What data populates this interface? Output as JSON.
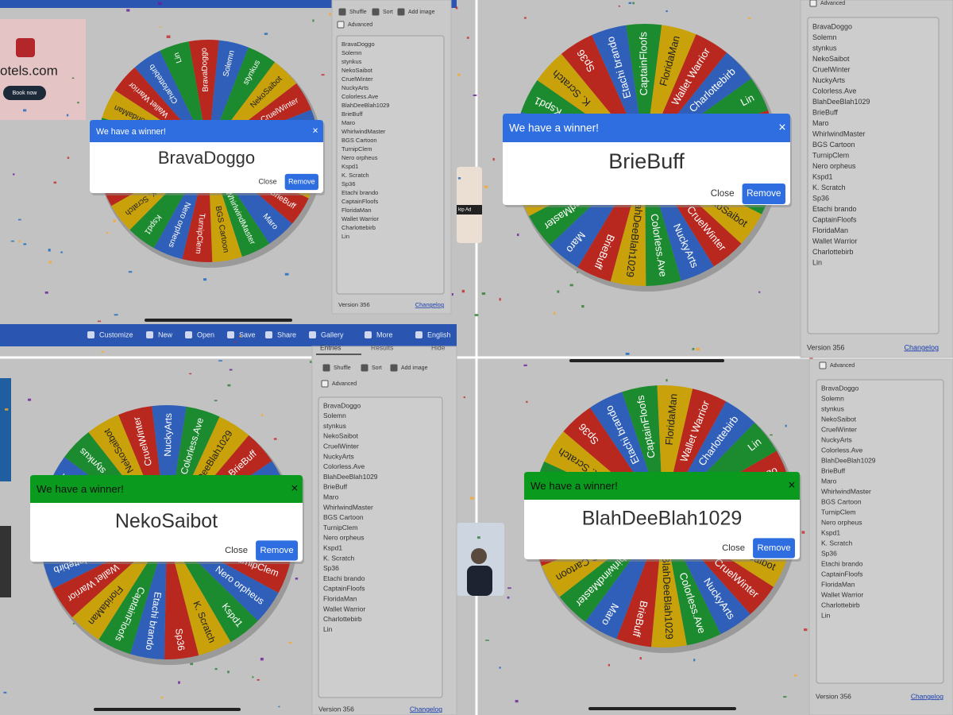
{
  "toolbar": [
    "Customize",
    "New",
    "Open",
    "Save",
    "Share",
    "Gallery",
    "More",
    "English"
  ],
  "tabs": {
    "entries": "Entries",
    "results": "Results",
    "hide": "Hide"
  },
  "controls": {
    "shuffle": "Shuffle",
    "sort": "Sort",
    "add_image": "Add image",
    "advanced": "Advanced"
  },
  "entries": [
    "BravaDoggo",
    "Solemn",
    "stynkus",
    "NekoSaibot",
    "CruelWinter",
    "NuckyArts",
    "Colorless.Ave",
    "BlahDeeBlah1029",
    "BrieBuff",
    "Maro",
    "WhirlwindMaster",
    "BGS Cartoon",
    "TurnipClem",
    "Nero orpheus",
    "Kspd1",
    "K. Scratch",
    "Sp36",
    "Etachi brando",
    "CaptainFloofs",
    "FloridaMan",
    "Wallet Warrior",
    "Charlottebirb",
    "Lin"
  ],
  "version": "Version 356",
  "changelog": "Changelog",
  "ad": {
    "brand": "otels.com",
    "button": "Book now",
    "skip": "kip Ad"
  },
  "dismiss_icon": "×",
  "panels": [
    {
      "title": "We have a winner!",
      "winner": "BravaDoggo",
      "close": "Close",
      "remove": "Remove",
      "header_color": "#2f6ee0"
    },
    {
      "title": "We have a winner!",
      "winner": "BrieBuff",
      "close": "Close",
      "remove": "Remove",
      "header_color": "#2f6ee0"
    },
    {
      "title": "We have a winner!",
      "winner": "NekoSaibot",
      "close": "Close",
      "remove": "Remove",
      "header_color": "#0a9a1e"
    },
    {
      "title": "We have a winner!",
      "winner": "BlahDeeBlah1029",
      "close": "Close",
      "remove": "Remove",
      "header_color": "#0a9a1e"
    }
  ]
}
